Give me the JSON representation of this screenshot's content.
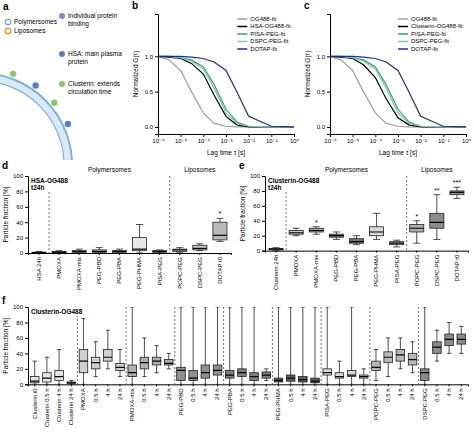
{
  "diagram": {
    "panel": "a",
    "labels": [
      "Polymersomes",
      "Liposomes"
    ],
    "notes": [
      "Individual protein binding",
      "HSA: main plasma protein",
      "Clusterin: extends circulation time"
    ]
  },
  "chart_data": [
    {
      "type": "line",
      "panel": "b",
      "log": "x",
      "legend": "top-right",
      "x": [
        1e-06,
        3e-06,
        1e-05,
        3e-05,
        0.0001,
        0.0003,
        0.001,
        0.003,
        0.01,
        0.1,
        1
      ],
      "xlim": [
        1e-06,
        1
      ],
      "ylim": [
        -0.1,
        1.6
      ],
      "xticks": [
        {
          "value": 1e-06,
          "label": "10⁻⁶"
        },
        {
          "value": 1e-05,
          "label": "10⁻⁵"
        },
        {
          "value": 0.0001,
          "label": "10⁻⁴"
        },
        {
          "value": 0.001,
          "label": "10⁻³"
        },
        {
          "value": 0.01,
          "label": "10⁻²"
        },
        {
          "value": 0.1,
          "label": "10⁻¹"
        },
        {
          "value": 1,
          "label": "10⁰"
        }
      ],
      "yticks": [
        {
          "value": 0,
          "label": "0.0"
        },
        {
          "value": 0.5,
          "label": "0.5"
        },
        {
          "value": 1,
          "label": "1.0"
        }
      ],
      "x_label": "Lag time τ [s]",
      "y_label": "Normalized G(τ)",
      "series": [
        {
          "name": "OG488-fit",
          "color": "#a0a0a0",
          "values": [
            1.0,
            0.95,
            0.8,
            0.5,
            0.2,
            0.05,
            0.01,
            0,
            0,
            0,
            0
          ]
        },
        {
          "name": "HSA-OG488-fit",
          "color": "#000000",
          "values": [
            1.0,
            0.99,
            0.97,
            0.9,
            0.75,
            0.45,
            0.15,
            0.03,
            0,
            0,
            0
          ]
        },
        {
          "name": "PISA-PEG-fit",
          "color": "#3c9b6b",
          "values": [
            1.0,
            1.0,
            0.98,
            0.95,
            0.85,
            0.6,
            0.25,
            0.07,
            0.01,
            0,
            0
          ]
        },
        {
          "name": "DSPC-PEG-fit",
          "color": "#7cc4b4",
          "values": [
            1.0,
            1.0,
            0.98,
            0.93,
            0.82,
            0.55,
            0.2,
            0.05,
            0.01,
            0,
            0
          ]
        },
        {
          "name": "DOTAP-fit",
          "color": "#1b2f8a",
          "values": [
            1.0,
            1.0,
            1.0,
            0.99,
            0.97,
            0.92,
            0.8,
            0.5,
            0.15,
            0.01,
            0
          ]
        }
      ]
    },
    {
      "type": "line",
      "panel": "c",
      "log": "x",
      "legend": "top-right",
      "x": [
        1e-06,
        3e-06,
        1e-05,
        3e-05,
        0.0001,
        0.0003,
        0.001,
        0.003,
        0.01,
        0.1,
        1
      ],
      "xlim": [
        1e-06,
        1
      ],
      "ylim": [
        -0.1,
        1.6
      ],
      "xticks": [
        {
          "value": 1e-06,
          "label": "10⁻⁶"
        },
        {
          "value": 1e-05,
          "label": "10⁻⁵"
        },
        {
          "value": 0.0001,
          "label": "10⁻⁴"
        },
        {
          "value": 0.001,
          "label": "10⁻³"
        },
        {
          "value": 0.01,
          "label": "10⁻²"
        },
        {
          "value": 0.1,
          "label": "10⁻¹"
        },
        {
          "value": 1,
          "label": "10⁰"
        }
      ],
      "yticks": [
        {
          "value": 0,
          "label": "0.0"
        },
        {
          "value": 0.5,
          "label": "0.5"
        },
        {
          "value": 1,
          "label": "1.0"
        }
      ],
      "x_label": "Lag time τ [s]",
      "y_label": "Normalized G(τ)",
      "series": [
        {
          "name": "OG488-fit",
          "color": "#a0a0a0",
          "values": [
            1.0,
            0.95,
            0.8,
            0.5,
            0.2,
            0.05,
            0.01,
            0,
            0,
            0,
            0
          ]
        },
        {
          "name": "Clusterin-OG488-fit",
          "color": "#000000",
          "values": [
            1.0,
            0.99,
            0.97,
            0.88,
            0.7,
            0.4,
            0.13,
            0.03,
            0,
            0,
            0
          ]
        },
        {
          "name": "PISA-PEG-fit",
          "color": "#3c9b6b",
          "values": [
            1.0,
            1.0,
            0.98,
            0.95,
            0.85,
            0.6,
            0.25,
            0.07,
            0.01,
            0,
            0
          ]
        },
        {
          "name": "DSPC-PEG-fit",
          "color": "#7cc4b4",
          "values": [
            1.0,
            1.0,
            0.98,
            0.93,
            0.82,
            0.55,
            0.2,
            0.05,
            0.01,
            0,
            0
          ]
        },
        {
          "name": "DOTAP-fit",
          "color": "#1b2f8a",
          "values": [
            1.0,
            1.0,
            1.0,
            0.99,
            0.97,
            0.92,
            0.8,
            0.5,
            0.15,
            0.01,
            0
          ]
        }
      ]
    },
    {
      "type": "box",
      "panel": "d",
      "annotations": [
        "HSA-OG488",
        "t24h"
      ],
      "y_label": "Particle fraction [%]",
      "ylim": [
        0,
        100
      ],
      "yticks": [
        0,
        20,
        40,
        60,
        80,
        100
      ],
      "categories": [
        "HSA 24h",
        "PMOXA",
        "PMOXA-mix",
        "PEG-PBD",
        "PEG-PBA",
        "PEG-PHMA",
        "PISA-PEG",
        "POPC-PEG",
        "DSPC-PEG",
        "DOTAP t0"
      ],
      "groups": [
        {
          "label": "Polymersomes",
          "start": "PMOXA",
          "end": "PISA-PEG"
        },
        {
          "label": "Liposomes",
          "start": "POPC-PEG",
          "end": "DOTAP t0"
        }
      ],
      "colors": [
        "#f5f5f5",
        "#e0e0e0",
        "#d0d0d0",
        "#c0c0c0",
        "#b0b0b0",
        "#e8e8e8",
        "#dddddd",
        "#e8e8e8",
        "#cccccc",
        "#bbbbbb"
      ],
      "significance": [
        null,
        null,
        null,
        null,
        null,
        null,
        null,
        null,
        null,
        "*"
      ],
      "boxes": [
        {
          "min": 0,
          "q1": 0,
          "median": 0.5,
          "q3": 1,
          "max": 2
        },
        {
          "min": 0,
          "q1": 0.5,
          "median": 1,
          "q3": 2,
          "max": 3
        },
        {
          "min": 0,
          "q1": 1,
          "median": 2,
          "q3": 3,
          "max": 5
        },
        {
          "min": 0,
          "q1": 1,
          "median": 2,
          "q3": 4,
          "max": 7
        },
        {
          "min": 0,
          "q1": 1,
          "median": 2,
          "q3": 3,
          "max": 5
        },
        {
          "min": 0,
          "q1": 3,
          "median": 5,
          "q3": 20,
          "max": 37
        },
        {
          "min": 0,
          "q1": 1,
          "median": 2,
          "q3": 3,
          "max": 4
        },
        {
          "min": 1,
          "q1": 2,
          "median": 4,
          "q3": 5,
          "max": 7
        },
        {
          "min": 3,
          "q1": 4,
          "median": 6,
          "q3": 10,
          "max": 12
        },
        {
          "min": 15,
          "q1": 17,
          "median": 23,
          "q3": 40,
          "max": 45
        }
      ]
    },
    {
      "type": "box",
      "panel": "e",
      "annotations": [
        "Clusterin-OG488",
        "t24h"
      ],
      "y_label": "Particle fraction [%]",
      "ylim": [
        0,
        100
      ],
      "yticks": [
        0,
        20,
        40,
        60,
        80,
        100
      ],
      "categories": [
        "Clusterin 24h",
        "PMOXA",
        "PMOXA-mix",
        "PEG-PBD",
        "PEG-PBA",
        "PEG-PHMA",
        "PISA-PEG",
        "POPC-PEG",
        "DSPC-PEG",
        "DOTAP t0"
      ],
      "groups": [
        {
          "label": "Polymersomes",
          "start": "PMOXA",
          "end": "PISA-PEG"
        },
        {
          "label": "Liposomes",
          "start": "POPC-PEG",
          "end": "DOTAP t0"
        }
      ],
      "colors": [
        "#eeeeee",
        "#c8c8c8",
        "#a8a8a8",
        "#909090",
        "#787878",
        "#d8d8d8",
        "#c0c0c0",
        "#b0b0b0",
        "#8c8c8c",
        "#999999"
      ],
      "significance": [
        null,
        null,
        "*",
        null,
        null,
        null,
        null,
        "*",
        "**",
        "***"
      ],
      "boxes": [
        {
          "min": 0,
          "q1": 1,
          "median": 2,
          "q3": 3,
          "max": 4
        },
        {
          "min": 20,
          "q1": 22,
          "median": 24,
          "q3": 27,
          "max": 30
        },
        {
          "min": 22,
          "q1": 25,
          "median": 27,
          "q3": 30,
          "max": 32
        },
        {
          "min": 15,
          "q1": 18,
          "median": 20,
          "q3": 22,
          "max": 25
        },
        {
          "min": 8,
          "q1": 10,
          "median": 12,
          "q3": 16,
          "max": 20
        },
        {
          "min": 15,
          "q1": 20,
          "median": 25,
          "q3": 32,
          "max": 50
        },
        {
          "min": 5,
          "q1": 8,
          "median": 10,
          "q3": 12,
          "max": 14
        },
        {
          "min": 10,
          "q1": 25,
          "median": 30,
          "q3": 35,
          "max": 40
        },
        {
          "min": 15,
          "q1": 30,
          "median": 38,
          "q3": 50,
          "max": 75
        },
        {
          "min": 70,
          "q1": 75,
          "median": 78,
          "q3": 80,
          "max": 85
        }
      ]
    },
    {
      "type": "box",
      "panel": "f",
      "annotations": [
        "Clusterin-OG488"
      ],
      "y_label": "Particle fraction [%]",
      "ylim": [
        0,
        100
      ],
      "yticks": [
        0,
        20,
        40,
        60,
        80,
        100
      ],
      "categories": [
        "Clusterin t0",
        "Clusterin 0.5 h",
        "Clusterin 4 h",
        "Clusterin 24 h",
        "PMOXA",
        "0.5 h",
        "4 h",
        "24 h",
        "PMOXA-mix",
        "0.5 h",
        "4 h",
        "24 h",
        "PEG-PBD",
        "0.5 h",
        "4 h",
        "24 h",
        "PEG-PBA",
        "0.5 h",
        "4 h",
        "24 h",
        "PEG-PHMA",
        "0.5 h",
        "4 h",
        "24 h",
        "PISA-PEG",
        "0.5 h",
        "4 h",
        "24 h",
        "POPC-PEG",
        "0.5 h",
        "4 h",
        "24 h",
        "DSPC-PEG",
        "0.5 h",
        "4 h",
        "24 h"
      ],
      "colors": [
        "#e6e6e6",
        "#e6e6e6",
        "#e6e6e6",
        "#e6e6e6",
        "#d0d0d0",
        "#d0d0d0",
        "#d0d0d0",
        "#d0d0d0",
        "#b0b0b0",
        "#b0b0b0",
        "#b0b0b0",
        "#b0b0b0",
        "#909090",
        "#909090",
        "#909090",
        "#909090",
        "#808080",
        "#808080",
        "#808080",
        "#808080",
        "#606060",
        "#606060",
        "#606060",
        "#606060",
        "#d8d8d8",
        "#d8d8d8",
        "#d8d8d8",
        "#d8d8d8",
        "#b8b8b8",
        "#b8b8b8",
        "#b8b8b8",
        "#b8b8b8",
        "#8a8a8a",
        "#8a8a8a",
        "#8a8a8a",
        "#8a8a8a"
      ],
      "boxes": [
        {
          "min": 0,
          "q1": 2,
          "median": 4,
          "q3": 10,
          "max": 30
        },
        {
          "min": 0,
          "q1": 3,
          "median": 8,
          "q3": 15,
          "max": 35
        },
        {
          "min": 0,
          "q1": 5,
          "median": 10,
          "q3": 18,
          "max": 45
        },
        {
          "min": 0,
          "q1": 1,
          "median": 2,
          "q3": 3,
          "max": 5
        },
        {
          "min": 0,
          "q1": 15,
          "median": 30,
          "q3": 45,
          "max": 85
        },
        {
          "min": 10,
          "q1": 20,
          "median": 28,
          "q3": 35,
          "max": 55
        },
        {
          "min": 20,
          "q1": 30,
          "median": 35,
          "q3": 45,
          "max": 70
        },
        {
          "min": 10,
          "q1": 18,
          "median": 22,
          "q3": 27,
          "max": 45
        },
        {
          "min": 0,
          "q1": 10,
          "median": 15,
          "q3": 25,
          "max": 100
        },
        {
          "min": 10,
          "q1": 20,
          "median": 28,
          "q3": 35,
          "max": 60
        },
        {
          "min": 15,
          "q1": 25,
          "median": 30,
          "q3": 35,
          "max": 50
        },
        {
          "min": 20,
          "q1": 25,
          "median": 27,
          "q3": 32,
          "max": 40
        },
        {
          "min": 0,
          "q1": 5,
          "median": 18,
          "q3": 22,
          "max": 100
        },
        {
          "min": 0,
          "q1": 5,
          "median": 8,
          "q3": 18,
          "max": 100
        },
        {
          "min": 0,
          "q1": 8,
          "median": 15,
          "q3": 25,
          "max": 100
        },
        {
          "min": 0,
          "q1": 12,
          "median": 18,
          "q3": 25,
          "max": 100
        },
        {
          "min": 0,
          "q1": 8,
          "median": 12,
          "q3": 18,
          "max": 100
        },
        {
          "min": 0,
          "q1": 10,
          "median": 15,
          "q3": 20,
          "max": 100
        },
        {
          "min": 0,
          "q1": 5,
          "median": 10,
          "q3": 15,
          "max": 100
        },
        {
          "min": 5,
          "q1": 8,
          "median": 12,
          "q3": 16,
          "max": 20
        },
        {
          "min": 0,
          "q1": 3,
          "median": 5,
          "q3": 8,
          "max": 100
        },
        {
          "min": 0,
          "q1": 4,
          "median": 8,
          "q3": 12,
          "max": 100
        },
        {
          "min": 0,
          "q1": 3,
          "median": 6,
          "q3": 10,
          "max": 100
        },
        {
          "min": 0,
          "q1": 2,
          "median": 4,
          "q3": 8,
          "max": 100
        },
        {
          "min": 0,
          "q1": 12,
          "median": 15,
          "q3": 20,
          "max": 100
        },
        {
          "min": 0,
          "q1": 8,
          "median": 10,
          "q3": 15,
          "max": 30
        },
        {
          "min": 0,
          "q1": 10,
          "median": 12,
          "q3": 18,
          "max": 100
        },
        {
          "min": 0,
          "q1": 8,
          "median": 10,
          "q3": 12,
          "max": 20
        },
        {
          "min": 5,
          "q1": 18,
          "median": 22,
          "q3": 30,
          "max": 45
        },
        {
          "min": 10,
          "q1": 28,
          "median": 35,
          "q3": 42,
          "max": 60
        },
        {
          "min": 20,
          "q1": 30,
          "median": 38,
          "q3": 45,
          "max": 60
        },
        {
          "min": 15,
          "q1": 25,
          "median": 32,
          "q3": 40,
          "max": 55
        },
        {
          "min": 0,
          "q1": 5,
          "median": 15,
          "q3": 20,
          "max": 100
        },
        {
          "min": 30,
          "q1": 40,
          "median": 48,
          "q3": 55,
          "max": 70
        },
        {
          "min": 40,
          "q1": 50,
          "median": 58,
          "q3": 65,
          "max": 80
        },
        {
          "min": 40,
          "q1": 52,
          "median": 58,
          "q3": 65,
          "max": 75
        }
      ]
    }
  ]
}
